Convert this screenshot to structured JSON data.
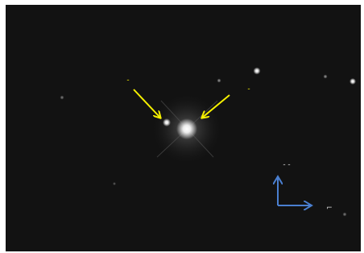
{
  "annotations": {
    "labels": [
      "-",
      "-",
      "- -",
      "⌐"
    ]
  }
}
